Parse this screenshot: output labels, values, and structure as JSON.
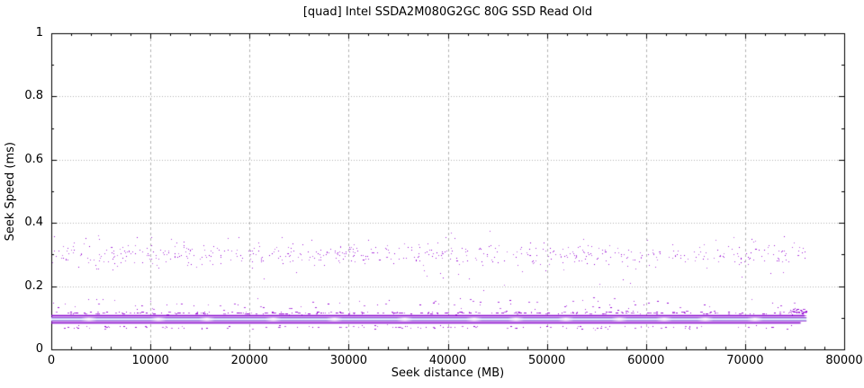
{
  "chart_data": {
    "type": "scatter",
    "title": "[quad] Intel SSDA2M080G2GC 80G SSD Read Old",
    "xlabel": "Seek distance (MB)",
    "ylabel": "Seek Speed (ms)",
    "xlim": [
      0,
      80000
    ],
    "ylim": [
      0,
      1
    ],
    "grid": true,
    "legend": "none",
    "x_axis": {
      "label": "Seek distance (MB)",
      "min": 0,
      "max": 80000,
      "minor_step": 2000,
      "ticks": [
        {
          "v": 0,
          "label": "0"
        },
        {
          "v": 10000,
          "label": "10000"
        },
        {
          "v": 20000,
          "label": "20000"
        },
        {
          "v": 30000,
          "label": "30000"
        },
        {
          "v": 40000,
          "label": "40000"
        },
        {
          "v": 50000,
          "label": "50000"
        },
        {
          "v": 60000,
          "label": "60000"
        },
        {
          "v": 70000,
          "label": "70000"
        },
        {
          "v": 80000,
          "label": "80000"
        }
      ]
    },
    "y_axis": {
      "label": "Seek Speed (ms)",
      "min": 0,
      "max": 1,
      "minor_step": 0.1,
      "ticks": [
        {
          "v": 0,
          "label": "0"
        },
        {
          "v": 0.2,
          "label": "0.2"
        },
        {
          "v": 0.4,
          "label": "0.4"
        },
        {
          "v": 0.6,
          "label": "0.6"
        },
        {
          "v": 0.8,
          "label": "0.8"
        },
        {
          "v": 1,
          "label": "1"
        }
      ]
    },
    "colors": {
      "point": "#9400d3",
      "dense_line": "#8806ce",
      "glow_edge": "#c490e4",
      "glow_inner": "#a6e0f7",
      "glow_core": "#ffffff",
      "grid": "#b4b4b4",
      "border": "#000000",
      "background": "#ffffff"
    },
    "data_x_max": 76100,
    "seed": 1337,
    "point_clusters": [
      {
        "name": "seek-cloud-0.30ms",
        "y_mean": 0.3,
        "y_sd": 0.017,
        "y_min": 0.252,
        "y_max": 0.345,
        "x_min": 0,
        "x_max": 76000,
        "count": 560,
        "dash_max": 1
      },
      {
        "name": "cloud-outliers-high",
        "y_mean": 0.356,
        "y_sd": 0.01,
        "y_min": 0.345,
        "y_max": 0.378,
        "x_min": 0,
        "x_max": 76000,
        "count": 22,
        "dash_max": 1
      },
      {
        "name": "cloud-outliers-low",
        "y_mean": 0.243,
        "y_sd": 0.006,
        "y_min": 0.23,
        "y_max": 0.252,
        "x_min": 0,
        "x_max": 76000,
        "count": 10,
        "dash_max": 1
      },
      {
        "name": "upper-dash-row",
        "y_mean": 0.1165,
        "y_sd": 0.0022,
        "y_min": 0.11,
        "y_max": 0.126,
        "x_min": 0,
        "x_max": 75800,
        "count": 240,
        "dash_max": 3
      },
      {
        "name": "mid-sparse-dots",
        "y_mean": 0.143,
        "y_sd": 0.011,
        "y_min": 0.126,
        "y_max": 0.185,
        "x_min": 0,
        "x_max": 75500,
        "count": 90,
        "dash_max": 2
      },
      {
        "name": "rare-mid-dots",
        "y_mean": 0.21,
        "y_sd": 0.015,
        "y_min": 0.186,
        "y_max": 0.245,
        "x_min": 0,
        "x_max": 75000,
        "count": 9,
        "dash_max": 1
      },
      {
        "name": "lower-dash-row",
        "y_mean": 0.071,
        "y_sd": 0.0028,
        "y_min": 0.063,
        "y_max": 0.08,
        "x_min": 500,
        "x_max": 75000,
        "count": 130,
        "dash_max": 2
      },
      {
        "name": "tail-uptick",
        "y_mean": 0.119,
        "y_sd": 0.006,
        "y_min": 0.105,
        "y_max": 0.132,
        "x_min": 74300,
        "x_max": 76200,
        "count": 28,
        "dash_max": 2
      }
    ],
    "dense_bands": [
      {
        "name": "dense-line-upper",
        "y": 0.1065,
        "x_min": 0,
        "x_max": 76000,
        "thickness": 1.6,
        "glow": false
      },
      {
        "name": "glow-band-core",
        "y": 0.0952,
        "x_min": 0,
        "x_max": 76200,
        "thickness": 5,
        "glow": true
      },
      {
        "name": "dense-line-lower",
        "y": 0.0838,
        "x_min": 0,
        "x_max": 75600,
        "thickness": 1.6,
        "glow": false
      }
    ]
  }
}
